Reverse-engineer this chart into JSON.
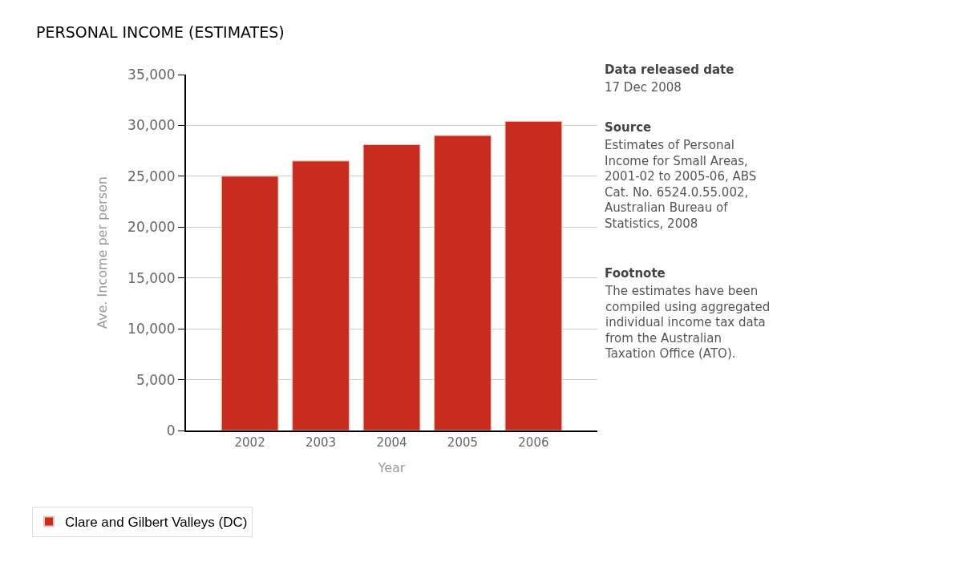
{
  "chart_data": {
    "type": "bar",
    "title": "PERSONAL INCOME (ESTIMATES)",
    "xlabel": "Year",
    "ylabel": "Ave. Income per person",
    "categories": [
      "2002",
      "2003",
      "2004",
      "2005",
      "2006"
    ],
    "series": [
      {
        "name": "Clare and Gilbert Valleys (DC)",
        "color": "#c82c1f",
        "values": [
          25000,
          26500,
          28100,
          29000,
          30400
        ]
      }
    ],
    "ylim": [
      0,
      35000
    ],
    "yticks": [
      {
        "value": 0,
        "label": "0"
      },
      {
        "value": 5000,
        "label": "5,000"
      },
      {
        "value": 10000,
        "label": "10,000"
      },
      {
        "value": 15000,
        "label": "15,000"
      },
      {
        "value": 20000,
        "label": "20,000"
      },
      {
        "value": 25000,
        "label": "25,000"
      },
      {
        "value": 30000,
        "label": "30,000"
      },
      {
        "value": 35000,
        "label": "35,000"
      }
    ],
    "grid": "y",
    "legend": "bottom left",
    "annotations": [
      "Data released date",
      "17 Dec 2008",
      "Source",
      "Estimates of Personal Income for Small Areas, 2001-02 to 2005-06, ABS Cat. No. 6524.0.55.002, Australian Bureau of Statistics, 2008",
      "Footnote",
      "The estimates have been compiled using aggregated individual income tax data from the Australian Taxation Office (ATO)."
    ]
  }
}
